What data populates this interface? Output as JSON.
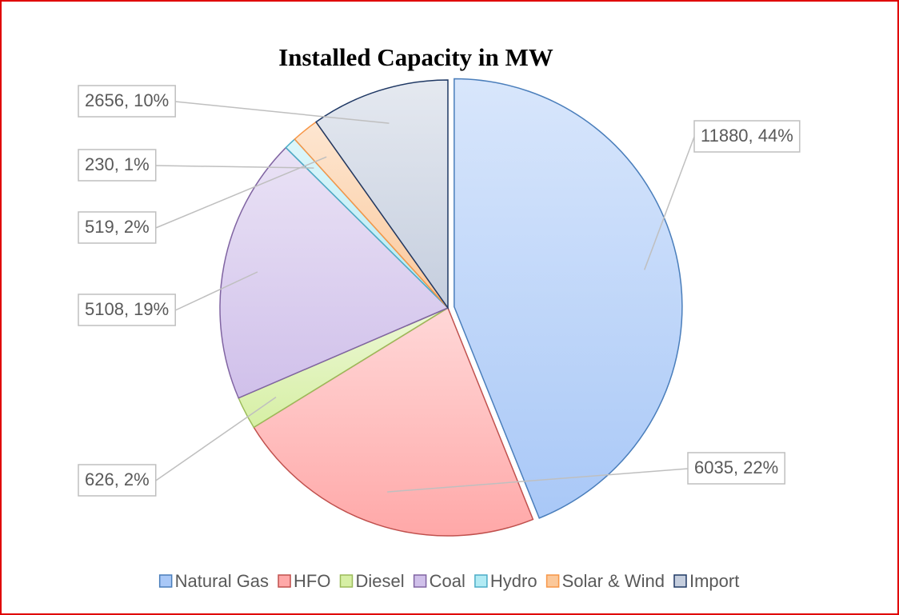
{
  "chart_data": {
    "type": "pie",
    "title": "Installed Capacity in MW",
    "categories": [
      "Natural Gas",
      "HFO",
      "Diesel",
      "Coal",
      "Hydro",
      "Solar & Wind",
      "Import"
    ],
    "values": [
      11880,
      6035,
      626,
      5108,
      230,
      519,
      2656
    ],
    "value_labels": [
      "11880, 44%",
      "6035, 22%",
      "626, 2%",
      "5108, 19%",
      "230, 1%",
      "519, 2%",
      "2656, 10%"
    ],
    "colors": [
      "#a9c8f7",
      "#ffa8a8",
      "#d6efa4",
      "#d0c0ea",
      "#b2ebf4",
      "#fbc89a",
      "#c5cede"
    ],
    "edge_colors": [
      "#4a7ebb",
      "#c0504d",
      "#9bbb59",
      "#8064a2",
      "#4bacc6",
      "#f79646",
      "#1f3864"
    ],
    "legend": "bottom"
  }
}
